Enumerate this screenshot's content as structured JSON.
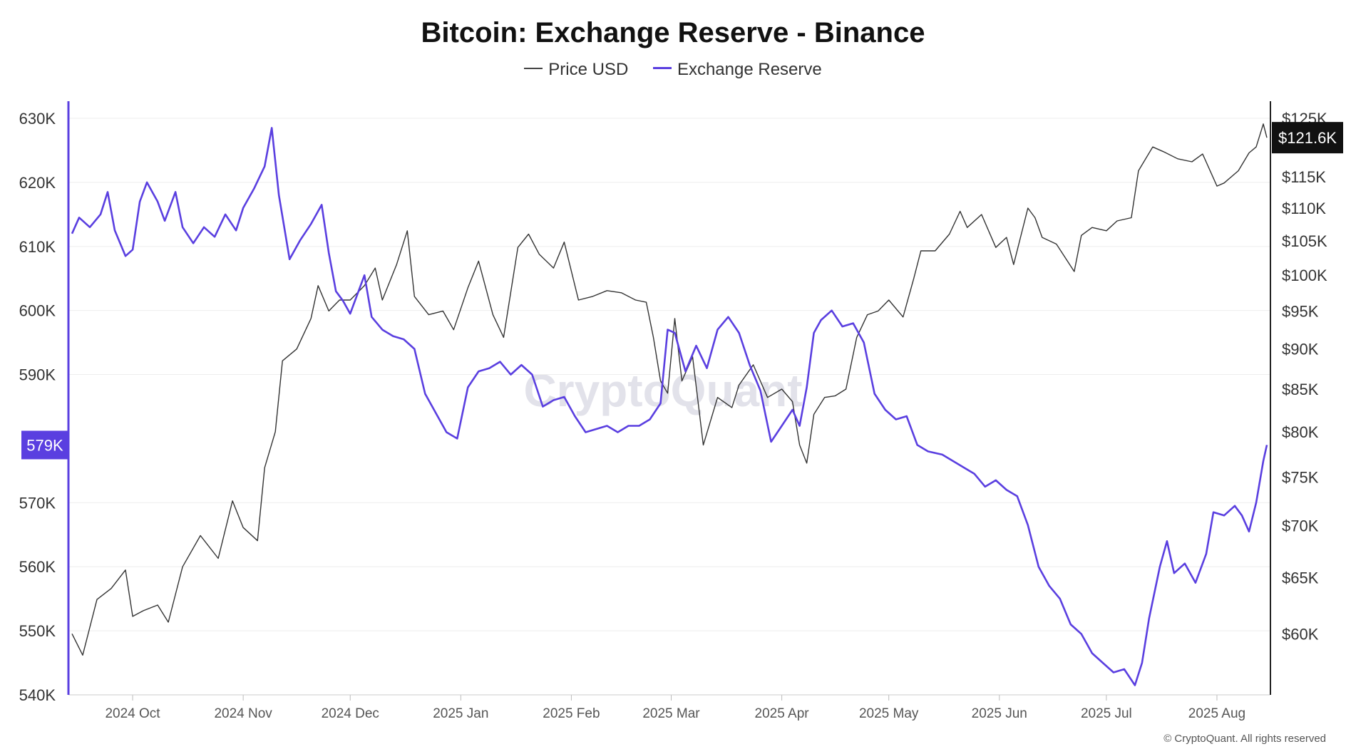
{
  "title": "Bitcoin: Exchange Reserve - Binance",
  "legend": {
    "price_label": "Price USD",
    "reserve_label": "Exchange Reserve"
  },
  "watermark": "CryptoQuant",
  "copyright": "© CryptoQuant. All rights reserved",
  "colors": {
    "price": "#333333",
    "reserve": "#5a3fe0",
    "badge_price": "#111111",
    "badge_reserve": "#5a3fe0"
  },
  "chart_data": {
    "type": "line",
    "title": "Bitcoin: Exchange Reserve - Binance",
    "x_range": [
      "2024-09-14",
      "2025-08-15"
    ],
    "x_ticks": [
      {
        "date": "2024-10-01",
        "label": "2024 Oct"
      },
      {
        "date": "2024-11-01",
        "label": "2024 Nov"
      },
      {
        "date": "2024-12-01",
        "label": "2024 Dec"
      },
      {
        "date": "2025-01-01",
        "label": "2025 Jan"
      },
      {
        "date": "2025-02-01",
        "label": "2025 Feb"
      },
      {
        "date": "2025-03-01",
        "label": "2025 Mar"
      },
      {
        "date": "2025-04-01",
        "label": "2025 Apr"
      },
      {
        "date": "2025-05-01",
        "label": "2025 May"
      },
      {
        "date": "2025-06-01",
        "label": "2025 Jun"
      },
      {
        "date": "2025-07-01",
        "label": "2025 Jul"
      },
      {
        "date": "2025-08-01",
        "label": "2025 Aug"
      }
    ],
    "left_axis": {
      "range": [
        540000,
        630000
      ],
      "ticks": [
        {
          "value": 630000,
          "label": "630K"
        },
        {
          "value": 620000,
          "label": "620K"
        },
        {
          "value": 610000,
          "label": "610K"
        },
        {
          "value": 600000,
          "label": "600K"
        },
        {
          "value": 590000,
          "label": "590K"
        },
        {
          "value": 570000,
          "label": "570K"
        },
        {
          "value": 560000,
          "label": "560K"
        },
        {
          "value": 550000,
          "label": "550K"
        },
        {
          "value": 540000,
          "label": "540K"
        }
      ],
      "current_label": "579K",
      "current_value": 579000
    },
    "right_axis": {
      "scale": "log",
      "range": [
        55000,
        125000
      ],
      "ticks": [
        {
          "value": 125000,
          "label": "$125K"
        },
        {
          "value": 115000,
          "label": "$115K"
        },
        {
          "value": 110000,
          "label": "$110K"
        },
        {
          "value": 105000,
          "label": "$105K"
        },
        {
          "value": 100000,
          "label": "$100K"
        },
        {
          "value": 95000,
          "label": "$95K"
        },
        {
          "value": 90000,
          "label": "$90K"
        },
        {
          "value": 85000,
          "label": "$85K"
        },
        {
          "value": 80000,
          "label": "$80K"
        },
        {
          "value": 75000,
          "label": "$75K"
        },
        {
          "value": 70000,
          "label": "$70K"
        },
        {
          "value": 65000,
          "label": "$65K"
        },
        {
          "value": 60000,
          "label": "$60K"
        }
      ],
      "current_label": "$121.6K",
      "current_value": 121600
    },
    "series": [
      {
        "name": "Price USD",
        "axis": "right",
        "points": [
          [
            "2024-09-14",
            60000
          ],
          [
            "2024-09-17",
            58200
          ],
          [
            "2024-09-21",
            63000
          ],
          [
            "2024-09-25",
            64000
          ],
          [
            "2024-09-29",
            65700
          ],
          [
            "2024-10-01",
            61500
          ],
          [
            "2024-10-04",
            62000
          ],
          [
            "2024-10-08",
            62500
          ],
          [
            "2024-10-11",
            61000
          ],
          [
            "2024-10-15",
            66000
          ],
          [
            "2024-10-20",
            69000
          ],
          [
            "2024-10-25",
            66800
          ],
          [
            "2024-10-29",
            72500
          ],
          [
            "2024-11-01",
            69800
          ],
          [
            "2024-11-05",
            68500
          ],
          [
            "2024-11-07",
            76000
          ],
          [
            "2024-11-10",
            80000
          ],
          [
            "2024-11-12",
            88500
          ],
          [
            "2024-11-16",
            90000
          ],
          [
            "2024-11-20",
            94000
          ],
          [
            "2024-11-22",
            98500
          ],
          [
            "2024-11-25",
            95000
          ],
          [
            "2024-11-28",
            96500
          ],
          [
            "2024-12-01",
            96500
          ],
          [
            "2024-12-05",
            98500
          ],
          [
            "2024-12-08",
            101000
          ],
          [
            "2024-12-10",
            96500
          ],
          [
            "2024-12-14",
            101500
          ],
          [
            "2024-12-17",
            106500
          ],
          [
            "2024-12-19",
            97000
          ],
          [
            "2024-12-23",
            94500
          ],
          [
            "2024-12-27",
            95000
          ],
          [
            "2024-12-30",
            92500
          ],
          [
            "2025-01-03",
            98200
          ],
          [
            "2025-01-06",
            102000
          ],
          [
            "2025-01-10",
            94500
          ],
          [
            "2025-01-13",
            91500
          ],
          [
            "2025-01-17",
            104000
          ],
          [
            "2025-01-20",
            106000
          ],
          [
            "2025-01-23",
            103000
          ],
          [
            "2025-01-27",
            101000
          ],
          [
            "2025-01-30",
            104800
          ],
          [
            "2025-02-03",
            96500
          ],
          [
            "2025-02-07",
            97000
          ],
          [
            "2025-02-11",
            97800
          ],
          [
            "2025-02-15",
            97500
          ],
          [
            "2025-02-19",
            96500
          ],
          [
            "2025-02-22",
            96200
          ],
          [
            "2025-02-24",
            91500
          ],
          [
            "2025-02-26",
            86000
          ],
          [
            "2025-02-28",
            84500
          ],
          [
            "2025-03-02",
            94000
          ],
          [
            "2025-03-04",
            86000
          ],
          [
            "2025-03-07",
            89000
          ],
          [
            "2025-03-10",
            78500
          ],
          [
            "2025-03-14",
            84000
          ],
          [
            "2025-03-18",
            82800
          ],
          [
            "2025-03-20",
            85500
          ],
          [
            "2025-03-24",
            88000
          ],
          [
            "2025-03-28",
            84000
          ],
          [
            "2025-04-01",
            85000
          ],
          [
            "2025-04-04",
            83500
          ],
          [
            "2025-04-06",
            78500
          ],
          [
            "2025-04-08",
            76500
          ],
          [
            "2025-04-10",
            82000
          ],
          [
            "2025-04-13",
            84000
          ],
          [
            "2025-04-16",
            84200
          ],
          [
            "2025-04-19",
            85000
          ],
          [
            "2025-04-22",
            91500
          ],
          [
            "2025-04-25",
            94500
          ],
          [
            "2025-04-28",
            95000
          ],
          [
            "2025-05-01",
            96500
          ],
          [
            "2025-05-05",
            94200
          ],
          [
            "2025-05-08",
            99500
          ],
          [
            "2025-05-10",
            103500
          ],
          [
            "2025-05-14",
            103500
          ],
          [
            "2025-05-18",
            106000
          ],
          [
            "2025-05-21",
            109500
          ],
          [
            "2025-05-23",
            107000
          ],
          [
            "2025-05-27",
            109000
          ],
          [
            "2025-05-31",
            104000
          ],
          [
            "2025-06-03",
            105500
          ],
          [
            "2025-06-05",
            101500
          ],
          [
            "2025-06-09",
            110000
          ],
          [
            "2025-06-11",
            108500
          ],
          [
            "2025-06-13",
            105500
          ],
          [
            "2025-06-17",
            104500
          ],
          [
            "2025-06-22",
            100500
          ],
          [
            "2025-06-24",
            105800
          ],
          [
            "2025-06-27",
            107000
          ],
          [
            "2025-07-01",
            106500
          ],
          [
            "2025-07-04",
            108000
          ],
          [
            "2025-07-08",
            108500
          ],
          [
            "2025-07-10",
            116000
          ],
          [
            "2025-07-14",
            120000
          ],
          [
            "2025-07-17",
            119200
          ],
          [
            "2025-07-21",
            118000
          ],
          [
            "2025-07-25",
            117500
          ],
          [
            "2025-07-28",
            118800
          ],
          [
            "2025-08-01",
            113500
          ],
          [
            "2025-08-03",
            114000
          ],
          [
            "2025-08-07",
            116000
          ],
          [
            "2025-08-10",
            119000
          ],
          [
            "2025-08-12",
            120000
          ],
          [
            "2025-08-14",
            124000
          ],
          [
            "2025-08-15",
            121600
          ]
        ]
      },
      {
        "name": "Exchange Reserve",
        "axis": "left",
        "points": [
          [
            "2024-09-14",
            612000
          ],
          [
            "2024-09-16",
            614500
          ],
          [
            "2024-09-19",
            613000
          ],
          [
            "2024-09-22",
            615000
          ],
          [
            "2024-09-24",
            618500
          ],
          [
            "2024-09-26",
            612500
          ],
          [
            "2024-09-29",
            608500
          ],
          [
            "2024-10-01",
            609500
          ],
          [
            "2024-10-03",
            617000
          ],
          [
            "2024-10-05",
            620000
          ],
          [
            "2024-10-08",
            617000
          ],
          [
            "2024-10-10",
            614000
          ],
          [
            "2024-10-13",
            618500
          ],
          [
            "2024-10-15",
            613000
          ],
          [
            "2024-10-18",
            610500
          ],
          [
            "2024-10-21",
            613000
          ],
          [
            "2024-10-24",
            611500
          ],
          [
            "2024-10-27",
            615000
          ],
          [
            "2024-10-30",
            612500
          ],
          [
            "2024-11-01",
            616000
          ],
          [
            "2024-11-04",
            619000
          ],
          [
            "2024-11-07",
            622500
          ],
          [
            "2024-11-09",
            628500
          ],
          [
            "2024-11-11",
            618000
          ],
          [
            "2024-11-14",
            608000
          ],
          [
            "2024-11-17",
            611000
          ],
          [
            "2024-11-20",
            613500
          ],
          [
            "2024-11-23",
            616500
          ],
          [
            "2024-11-25",
            609000
          ],
          [
            "2024-11-27",
            603000
          ],
          [
            "2024-11-29",
            601500
          ],
          [
            "2024-12-01",
            599500
          ],
          [
            "2024-12-03",
            602500
          ],
          [
            "2024-12-05",
            605500
          ],
          [
            "2024-12-07",
            599000
          ],
          [
            "2024-12-10",
            597000
          ],
          [
            "2024-12-13",
            596000
          ],
          [
            "2024-12-16",
            595500
          ],
          [
            "2024-12-19",
            594000
          ],
          [
            "2024-12-22",
            587000
          ],
          [
            "2024-12-25",
            584000
          ],
          [
            "2024-12-28",
            581000
          ],
          [
            "2024-12-31",
            580000
          ],
          [
            "2025-01-03",
            588000
          ],
          [
            "2025-01-06",
            590500
          ],
          [
            "2025-01-09",
            591000
          ],
          [
            "2025-01-12",
            592000
          ],
          [
            "2025-01-15",
            590000
          ],
          [
            "2025-01-18",
            591500
          ],
          [
            "2025-01-21",
            590000
          ],
          [
            "2025-01-24",
            585000
          ],
          [
            "2025-01-27",
            586000
          ],
          [
            "2025-01-30",
            586500
          ],
          [
            "2025-02-02",
            583500
          ],
          [
            "2025-02-05",
            581000
          ],
          [
            "2025-02-08",
            581500
          ],
          [
            "2025-02-11",
            582000
          ],
          [
            "2025-02-14",
            581000
          ],
          [
            "2025-02-17",
            582000
          ],
          [
            "2025-02-20",
            582000
          ],
          [
            "2025-02-23",
            583000
          ],
          [
            "2025-02-26",
            585500
          ],
          [
            "2025-02-28",
            597000
          ],
          [
            "2025-03-02",
            596500
          ],
          [
            "2025-03-05",
            590500
          ],
          [
            "2025-03-08",
            594500
          ],
          [
            "2025-03-11",
            591000
          ],
          [
            "2025-03-14",
            597000
          ],
          [
            "2025-03-17",
            599000
          ],
          [
            "2025-03-20",
            596500
          ],
          [
            "2025-03-23",
            591500
          ],
          [
            "2025-03-26",
            587500
          ],
          [
            "2025-03-29",
            579500
          ],
          [
            "2025-04-01",
            582000
          ],
          [
            "2025-04-04",
            584500
          ],
          [
            "2025-04-06",
            582000
          ],
          [
            "2025-04-08",
            588000
          ],
          [
            "2025-04-10",
            596500
          ],
          [
            "2025-04-12",
            598500
          ],
          [
            "2025-04-15",
            600000
          ],
          [
            "2025-04-18",
            597500
          ],
          [
            "2025-04-21",
            598000
          ],
          [
            "2025-04-24",
            595000
          ],
          [
            "2025-04-27",
            587000
          ],
          [
            "2025-04-30",
            584500
          ],
          [
            "2025-05-03",
            583000
          ],
          [
            "2025-05-06",
            583500
          ],
          [
            "2025-05-09",
            579000
          ],
          [
            "2025-05-12",
            578000
          ],
          [
            "2025-05-16",
            577500
          ],
          [
            "2025-05-19",
            576500
          ],
          [
            "2025-05-22",
            575500
          ],
          [
            "2025-05-25",
            574500
          ],
          [
            "2025-05-28",
            572500
          ],
          [
            "2025-05-31",
            573500
          ],
          [
            "2025-06-03",
            572000
          ],
          [
            "2025-06-06",
            571000
          ],
          [
            "2025-06-09",
            566500
          ],
          [
            "2025-06-12",
            560000
          ],
          [
            "2025-06-15",
            557000
          ],
          [
            "2025-06-18",
            555000
          ],
          [
            "2025-06-21",
            551000
          ],
          [
            "2025-06-24",
            549500
          ],
          [
            "2025-06-27",
            546500
          ],
          [
            "2025-06-30",
            545000
          ],
          [
            "2025-07-03",
            543500
          ],
          [
            "2025-07-06",
            544000
          ],
          [
            "2025-07-09",
            541500
          ],
          [
            "2025-07-11",
            545000
          ],
          [
            "2025-07-13",
            552000
          ],
          [
            "2025-07-16",
            560000
          ],
          [
            "2025-07-18",
            564000
          ],
          [
            "2025-07-20",
            559000
          ],
          [
            "2025-07-23",
            560500
          ],
          [
            "2025-07-26",
            557500
          ],
          [
            "2025-07-29",
            562000
          ],
          [
            "2025-07-31",
            568500
          ],
          [
            "2025-08-03",
            568000
          ],
          [
            "2025-08-06",
            569500
          ],
          [
            "2025-08-08",
            568000
          ],
          [
            "2025-08-10",
            565500
          ],
          [
            "2025-08-12",
            570000
          ],
          [
            "2025-08-14",
            576500
          ],
          [
            "2025-08-15",
            579000
          ]
        ]
      }
    ]
  }
}
